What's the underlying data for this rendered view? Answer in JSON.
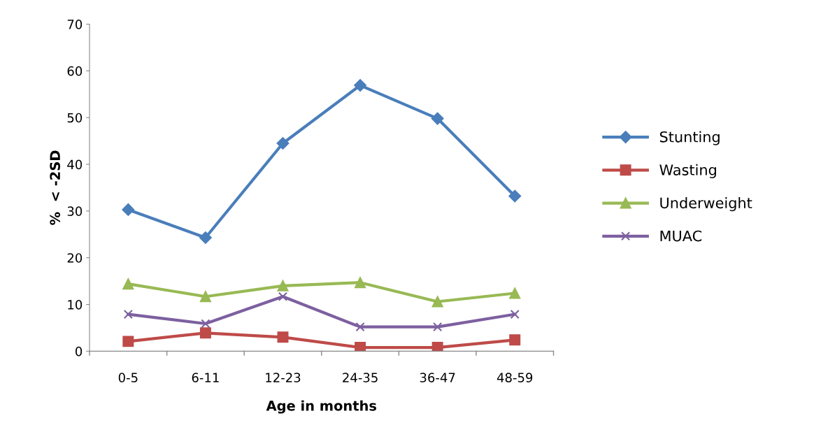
{
  "chart_data": {
    "type": "line",
    "xlabel": "Age in months",
    "ylabel": "%  < -2SD",
    "categories": [
      "0-5",
      "6-11",
      "12-23",
      "24-35",
      "36-47",
      "48-59"
    ],
    "series": [
      {
        "name": "Stunting",
        "color": "#4a7ebb",
        "marker": "diamond",
        "values": [
          30.3,
          24.3,
          44.5,
          56.9,
          49.8,
          33.2
        ]
      },
      {
        "name": "Wasting",
        "color": "#be4b48",
        "marker": "square",
        "values": [
          2.1,
          3.9,
          3.0,
          0.8,
          0.8,
          2.4
        ]
      },
      {
        "name": "Underweight",
        "color": "#98b954",
        "marker": "triangle",
        "values": [
          14.4,
          11.7,
          14.0,
          14.7,
          10.6,
          12.4
        ]
      },
      {
        "name": "MUAC",
        "color": "#7d60a0",
        "marker": "cross",
        "values": [
          7.9,
          5.9,
          11.7,
          5.2,
          5.2,
          7.9
        ]
      }
    ],
    "ylim": [
      0,
      70
    ],
    "yticks": [
      0,
      10,
      20,
      30,
      40,
      50,
      60,
      70
    ],
    "grid": false,
    "legend": "right",
    "line_style": "solid"
  }
}
